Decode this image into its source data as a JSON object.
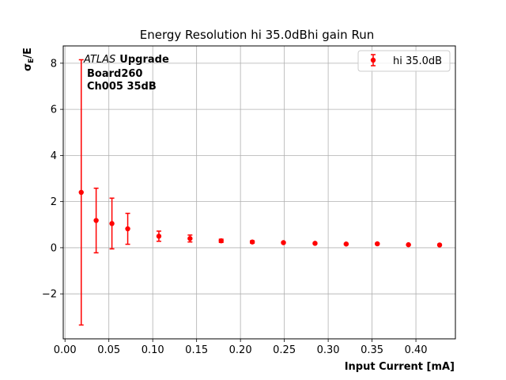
{
  "chart_data": {
    "type": "scatter",
    "title": "Energy Resolution hi 35.0dBhi gain Run",
    "xlabel": "Input Current [mA]",
    "ylabel_main": "σ",
    "ylabel_sub": "E",
    "ylabel_tail": "/E",
    "xlim": [
      -0.002,
      0.445
    ],
    "ylim": [
      -3.95,
      8.75
    ],
    "xticks": [
      0.0,
      0.05,
      0.1,
      0.15,
      0.2,
      0.25,
      0.3,
      0.35,
      0.4
    ],
    "xtick_labels": [
      "0.00",
      "0.05",
      "0.10",
      "0.15",
      "0.20",
      "0.25",
      "0.30",
      "0.35",
      "0.40"
    ],
    "yticks": [
      -2,
      0,
      2,
      4,
      6,
      8
    ],
    "ytick_labels": [
      "−2",
      "0",
      "2",
      "4",
      "6",
      "8"
    ],
    "grid": true,
    "legend_position": "top-right",
    "annotation": {
      "line1_italic": "ATLAS",
      "line1_bold": "Upgrade",
      "line2": "Board260",
      "line3": "Ch005 35dB"
    },
    "series": [
      {
        "name": "hi 35.0dB",
        "color": "#ff0000",
        "x": [
          0.0185,
          0.0355,
          0.0535,
          0.0715,
          0.107,
          0.1425,
          0.178,
          0.2135,
          0.249,
          0.285,
          0.3205,
          0.356,
          0.3915,
          0.427
        ],
        "y": [
          2.4,
          1.18,
          1.05,
          0.82,
          0.5,
          0.4,
          0.3,
          0.25,
          0.22,
          0.19,
          0.16,
          0.17,
          0.13,
          0.12
        ],
        "yerr": [
          5.75,
          1.4,
          1.1,
          0.67,
          0.22,
          0.15,
          0.07,
          0.05,
          0.03,
          0.03,
          0.03,
          0.03,
          0.02,
          0.02
        ]
      }
    ]
  }
}
